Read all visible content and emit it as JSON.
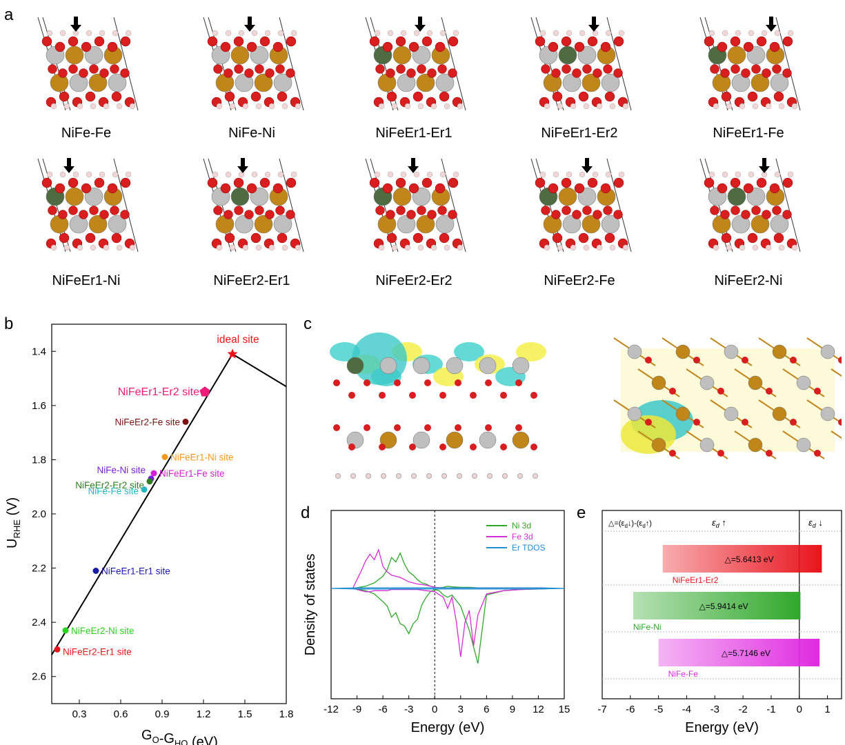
{
  "panel_letters": {
    "a": "a",
    "b": "b",
    "c": "c",
    "d": "d",
    "e": "e"
  },
  "structures": [
    {
      "label": "NiFe-Fe",
      "er": 0,
      "arrow": "gold"
    },
    {
      "label": "NiFe-Ni",
      "er": 0,
      "arrow": "grey"
    },
    {
      "label": "NiFeEr1-Er1",
      "er": 1,
      "arrow": "er"
    },
    {
      "label": "NiFeEr1-Er2",
      "er": 1,
      "arrow": "er"
    },
    {
      "label": "NiFeEr1-Fe",
      "er": 1,
      "arrow": "gold"
    },
    {
      "label": "NiFeEr1-Ni",
      "er": 1,
      "arrow": "grey"
    },
    {
      "label": "NiFeEr2-Er1",
      "er": 1,
      "arrow": "grey"
    },
    {
      "label": "NiFeEr2-Er2",
      "er": 1,
      "arrow": "er"
    },
    {
      "label": "NiFeEr2-Fe",
      "er": 1,
      "arrow": "gold"
    },
    {
      "label": "NiFeEr2-Ni",
      "er": 1,
      "arrow": "grey"
    }
  ],
  "atom_colors": {
    "oxygen": "#d81e1e",
    "ni": "#bfbfbf",
    "fe": "#c0861a",
    "er": "#4f6b42",
    "h": "#f2d6d6"
  },
  "chart_data": [
    {
      "id": "b",
      "type": "scatter",
      "xlabel_main": "G",
      "xlabel_sub1": "O",
      "xlabel_mid": "-G",
      "xlabel_sub2": "HO",
      "xlabel_tail": " (eV)",
      "ylabel_main": "U",
      "ylabel_sub": "RHE",
      "ylabel_tail": " (V)",
      "xlim": [
        0.1,
        1.8
      ],
      "ylim": [
        1.3,
        2.7
      ],
      "y_inverted": true,
      "xticks": [
        "0.3",
        "0.6",
        "0.9",
        "1.2",
        "1.5",
        "1.8"
      ],
      "yticks": [
        "1.4",
        "1.6",
        "1.8",
        "2.0",
        "2.2",
        "2.4",
        "2.6"
      ],
      "volcano_line": [
        [
          0.1,
          2.52
        ],
        [
          1.41,
          1.41
        ],
        [
          1.8,
          1.53
        ]
      ],
      "points": [
        {
          "name": "ideal site",
          "x": 1.41,
          "y": 1.41,
          "color": "#e8141c",
          "marker": "star",
          "anchor": "above"
        },
        {
          "name": "NiFeEr1-Er2 site",
          "x": 1.21,
          "y": 1.55,
          "color": "#ec1c79",
          "marker": "pentagon",
          "anchor": "left"
        },
        {
          "name": "NiFeEr2-Fe site",
          "x": 1.07,
          "y": 1.66,
          "color": "#7a1212",
          "marker": "dot",
          "anchor": "left"
        },
        {
          "name": "NiFeEr1-Ni site",
          "x": 0.92,
          "y": 1.79,
          "color": "#f39a1e",
          "marker": "dot",
          "anchor": "right"
        },
        {
          "name": "NiFe-Ni site",
          "x": 0.82,
          "y": 1.87,
          "color": "#7b1fd4",
          "marker": "dot",
          "anchor": "left-up"
        },
        {
          "name": "NiFeEr1-Fe site",
          "x": 0.84,
          "y": 1.85,
          "color": "#d41fd4",
          "marker": "dot",
          "anchor": "right"
        },
        {
          "name": "NiFeEr2-Er2 site",
          "x": 0.81,
          "y": 1.88,
          "color": "#2d7d1e",
          "marker": "dot",
          "anchor": "left"
        },
        {
          "name": "NiFe-Fe site",
          "x": 0.77,
          "y": 1.91,
          "color": "#1fb9c0",
          "marker": "dot",
          "anchor": "left"
        },
        {
          "name": "NiFeEr1-Er1 site",
          "x": 0.42,
          "y": 2.21,
          "color": "#1a1aa8",
          "marker": "dot",
          "anchor": "right"
        },
        {
          "name": "NiFeEr2-Ni site",
          "x": 0.2,
          "y": 2.43,
          "color": "#2bd21e",
          "marker": "dot",
          "anchor": "right"
        },
        {
          "name": "NiFeEr2-Er1 site",
          "x": 0.14,
          "y": 2.5,
          "color": "#e8141c",
          "marker": "dot",
          "anchor": "right"
        }
      ]
    },
    {
      "id": "d",
      "type": "line",
      "xlabel": "Energy (eV)",
      "ylabel": "Density of states",
      "xlim": [
        -12,
        15
      ],
      "xticks": [
        "-12",
        "-9",
        "-6",
        "-3",
        "0",
        "3",
        "6",
        "9",
        "12",
        "15"
      ],
      "fermi_line": 0,
      "series": [
        {
          "name": "Ni 3d",
          "color": "#2fa82a",
          "x": [
            -9.5,
            -8,
            -7,
            -6,
            -5.5,
            -5,
            -4.5,
            -4,
            -3.5,
            -3,
            -2.5,
            -2,
            -1.5,
            -1,
            -0.5,
            0,
            0.5,
            1,
            1.5,
            2,
            3,
            4,
            5,
            6,
            8,
            10,
            12,
            14
          ],
          "up": [
            0,
            0.2,
            0.5,
            1.1,
            1.7,
            2.8,
            2.4,
            3.2,
            2.2,
            1.5,
            1.2,
            0.8,
            0.5,
            0.4,
            0.2,
            0.1,
            0.05,
            0.1,
            0.2,
            0.15,
            0.1,
            0.1,
            0.05,
            0.05,
            0.05,
            0.05,
            0.05,
            0
          ],
          "down": [
            0,
            -0.2,
            -0.5,
            -1.2,
            -1.6,
            -2.6,
            -2.2,
            -3.2,
            -3.4,
            -4.1,
            -3.2,
            -2.8,
            -1.5,
            -0.8,
            -0.3,
            -0.1,
            -0.2,
            -0.6,
            -0.8,
            -0.6,
            -1.6,
            -3.8,
            -6.8,
            -0.6,
            -0.2,
            -0.1,
            -0.05,
            0
          ]
        },
        {
          "name": "Fe 3d",
          "color": "#d52bd5",
          "x": [
            -9.5,
            -9,
            -8.5,
            -8,
            -7.5,
            -7,
            -6.5,
            -6,
            -5.5,
            -5,
            -4.5,
            -4,
            -3.5,
            -3,
            -2,
            -1,
            0,
            1,
            1.5,
            2,
            2.5,
            3,
            3.5,
            4,
            4.5,
            5,
            6,
            8,
            10,
            12,
            14
          ],
          "up": [
            0,
            0.8,
            1.6,
            2.5,
            3.1,
            2.6,
            3.5,
            2.0,
            1.5,
            1.2,
            1.1,
            1.0,
            0.8,
            0.6,
            0.4,
            0.3,
            0.1,
            0.05,
            0.05,
            0.05,
            0.05,
            0.05,
            0.05,
            0.05,
            0.05,
            0.05,
            0.05,
            0.05,
            0.05,
            0.05,
            0
          ],
          "down": [
            0,
            -0.1,
            -0.2,
            -0.3,
            -0.3,
            -0.2,
            -0.2,
            -0.2,
            -0.2,
            -0.1,
            -0.1,
            -0.1,
            -0.1,
            -0.1,
            -0.1,
            -0.2,
            -0.3,
            -0.8,
            -1.8,
            -0.8,
            -3.0,
            -6.2,
            -3.1,
            -2.0,
            -5.2,
            -2.4,
            -0.5,
            -0.2,
            -0.1,
            -0.05,
            0
          ]
        },
        {
          "name": "Er TDOS",
          "color": "#1f8fd1",
          "x": [
            -12,
            -9,
            -6,
            -3,
            0,
            3,
            6,
            9,
            12,
            15
          ],
          "up": [
            0,
            0.05,
            0.05,
            0.05,
            0.05,
            0.05,
            0.05,
            0.05,
            0.05,
            0
          ],
          "down": [
            0,
            -0.05,
            -0.05,
            -0.05,
            -0.05,
            -0.05,
            -0.05,
            -0.05,
            -0.05,
            0
          ]
        }
      ]
    },
    {
      "id": "e",
      "type": "bar",
      "xlabel": "Energy (eV)",
      "xlim": [
        -7,
        1.5
      ],
      "xticks": [
        "-7",
        "-6",
        "-5",
        "-4",
        "-3",
        "-2",
        "-1",
        "0",
        "1"
      ],
      "header_left": "△=(ε",
      "header_left_sub1": "d",
      "header_left_mid": "↓)-(ε",
      "header_left_sub2": "d",
      "header_left_tail": "↑)",
      "header_up": "ε",
      "header_up_sub": "d",
      "header_up_arrow": " ↑",
      "header_down": "ε",
      "header_down_sub": "d",
      "header_down_arrow": " ↓",
      "bars": [
        {
          "name": "NiFeEr1-Er2",
          "delta": "△=5.6413 eV",
          "start": -4.85,
          "end": 0.8,
          "color": "#e8141c",
          "label_color": "#e8141c"
        },
        {
          "name": "NiFe-Ni",
          "delta": "△=5.9414 eV",
          "start": -5.9,
          "end": 0.04,
          "color": "#2fa82a",
          "label_color": "#2fa82a"
        },
        {
          "name": "NiFe-Fe",
          "delta": "△=5.7146 eV",
          "start": -5.0,
          "end": 0.72,
          "color": "#e02be0",
          "label_color": "#d52bd5"
        }
      ],
      "fermi_line": 0
    }
  ]
}
